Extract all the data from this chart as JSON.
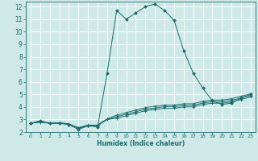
{
  "xlabel": "Humidex (Indice chaleur)",
  "bg_color": "#cfe9e9",
  "grid_color": "#ffffff",
  "line_color": "#1a6b6b",
  "xlim": [
    -0.5,
    23.5
  ],
  "ylim": [
    2,
    12.4
  ],
  "xticks": [
    0,
    1,
    2,
    3,
    4,
    5,
    6,
    7,
    8,
    9,
    10,
    11,
    12,
    13,
    14,
    15,
    16,
    17,
    18,
    19,
    20,
    21,
    22,
    23
  ],
  "yticks": [
    2,
    3,
    4,
    5,
    6,
    7,
    8,
    9,
    10,
    11,
    12
  ],
  "lines": [
    {
      "x": [
        0,
        1,
        2,
        3,
        4,
        5,
        6,
        7,
        8,
        9,
        10,
        11,
        12,
        13,
        14,
        15,
        16,
        17,
        18,
        19,
        20,
        21,
        22,
        23
      ],
      "y": [
        2.7,
        2.9,
        2.7,
        2.7,
        2.6,
        2.2,
        2.5,
        2.4,
        6.7,
        11.7,
        11.0,
        11.5,
        12.0,
        12.2,
        11.7,
        10.9,
        8.5,
        6.7,
        5.5,
        4.5,
        4.2,
        4.3,
        4.7,
        5.0
      ],
      "marker": "D",
      "ms": 1.8
    },
    {
      "x": [
        0,
        1,
        2,
        3,
        4,
        5,
        6,
        7,
        8,
        9,
        10,
        11,
        12,
        13,
        14,
        15,
        16,
        17,
        18,
        19,
        20,
        21,
        22,
        23
      ],
      "y": [
        2.7,
        2.8,
        2.7,
        2.75,
        2.65,
        2.35,
        2.55,
        2.55,
        3.05,
        3.35,
        3.55,
        3.75,
        3.95,
        4.05,
        4.15,
        4.15,
        4.25,
        4.25,
        4.45,
        4.55,
        4.55,
        4.65,
        4.85,
        5.05
      ],
      "marker": "+",
      "ms": 2.5
    },
    {
      "x": [
        0,
        1,
        2,
        3,
        4,
        5,
        6,
        7,
        8,
        9,
        10,
        11,
        12,
        13,
        14,
        15,
        16,
        17,
        18,
        19,
        20,
        21,
        22,
        23
      ],
      "y": [
        2.7,
        2.8,
        2.7,
        2.72,
        2.62,
        2.32,
        2.52,
        2.52,
        3.02,
        3.22,
        3.42,
        3.62,
        3.82,
        3.92,
        4.02,
        4.02,
        4.12,
        4.12,
        4.32,
        4.42,
        4.42,
        4.52,
        4.72,
        4.92
      ],
      "marker": "+",
      "ms": 2.5
    },
    {
      "x": [
        0,
        1,
        2,
        3,
        4,
        5,
        6,
        7,
        8,
        9,
        10,
        11,
        12,
        13,
        14,
        15,
        16,
        17,
        18,
        19,
        20,
        21,
        22,
        23
      ],
      "y": [
        2.7,
        2.8,
        2.7,
        2.7,
        2.6,
        2.3,
        2.5,
        2.5,
        3.0,
        3.1,
        3.3,
        3.5,
        3.7,
        3.8,
        3.9,
        3.9,
        4.0,
        4.0,
        4.2,
        4.3,
        4.3,
        4.4,
        4.6,
        4.8
      ],
      "marker": "+",
      "ms": 2.5
    }
  ]
}
